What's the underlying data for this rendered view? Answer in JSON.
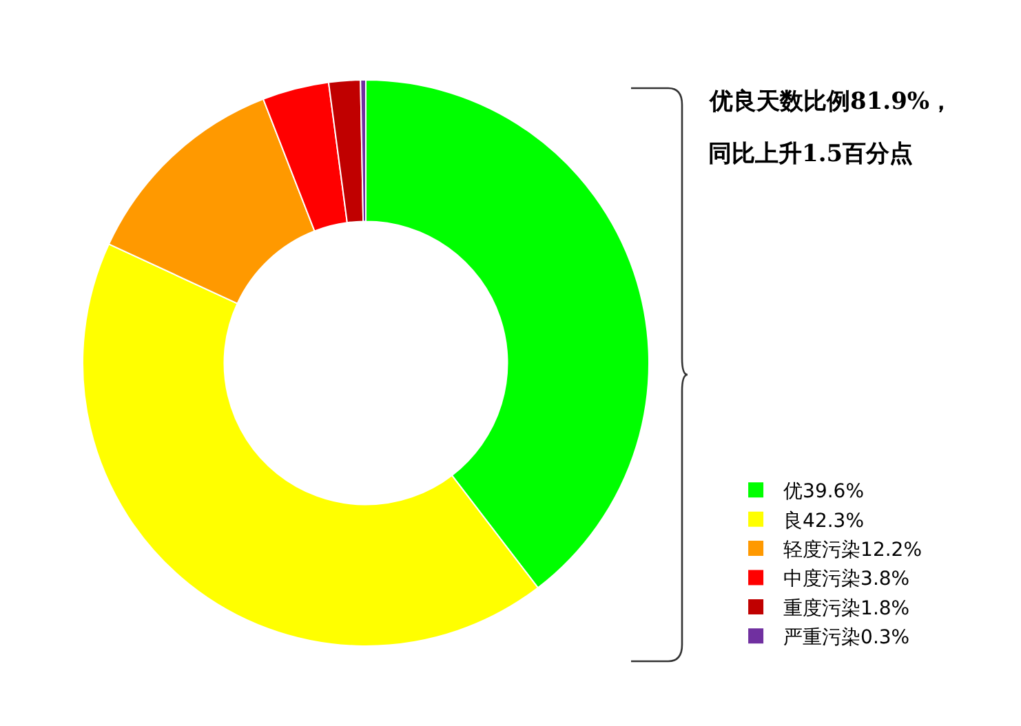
{
  "chart_data": {
    "type": "donut",
    "categories": [
      "优39.6%",
      "良42.3%",
      "轻度污染12.2%",
      "中度污染3.8%",
      "重度污染1.8%",
      "严重污染0.3%"
    ],
    "values": [
      39.6,
      42.3,
      12.2,
      3.8,
      1.8,
      0.3
    ],
    "colors": [
      "#00ff00",
      "#ffff00",
      "#ff9900",
      "#ff0000",
      "#c00000",
      "#7030a0"
    ],
    "legend": "right",
    "annotations": [
      "优良天数比例81.9%，",
      "同比上升1.5百分点"
    ]
  }
}
